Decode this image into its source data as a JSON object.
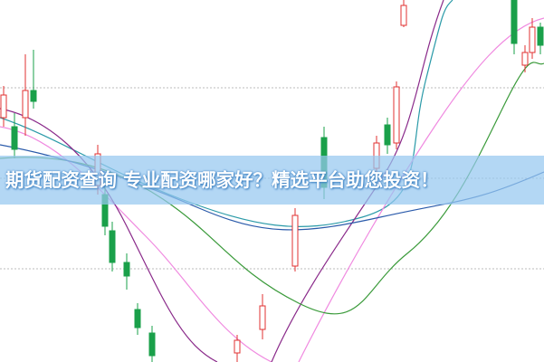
{
  "banner": {
    "text": "期货配资查询 专业配资哪家好？精选平台助您投资！"
  }
}
